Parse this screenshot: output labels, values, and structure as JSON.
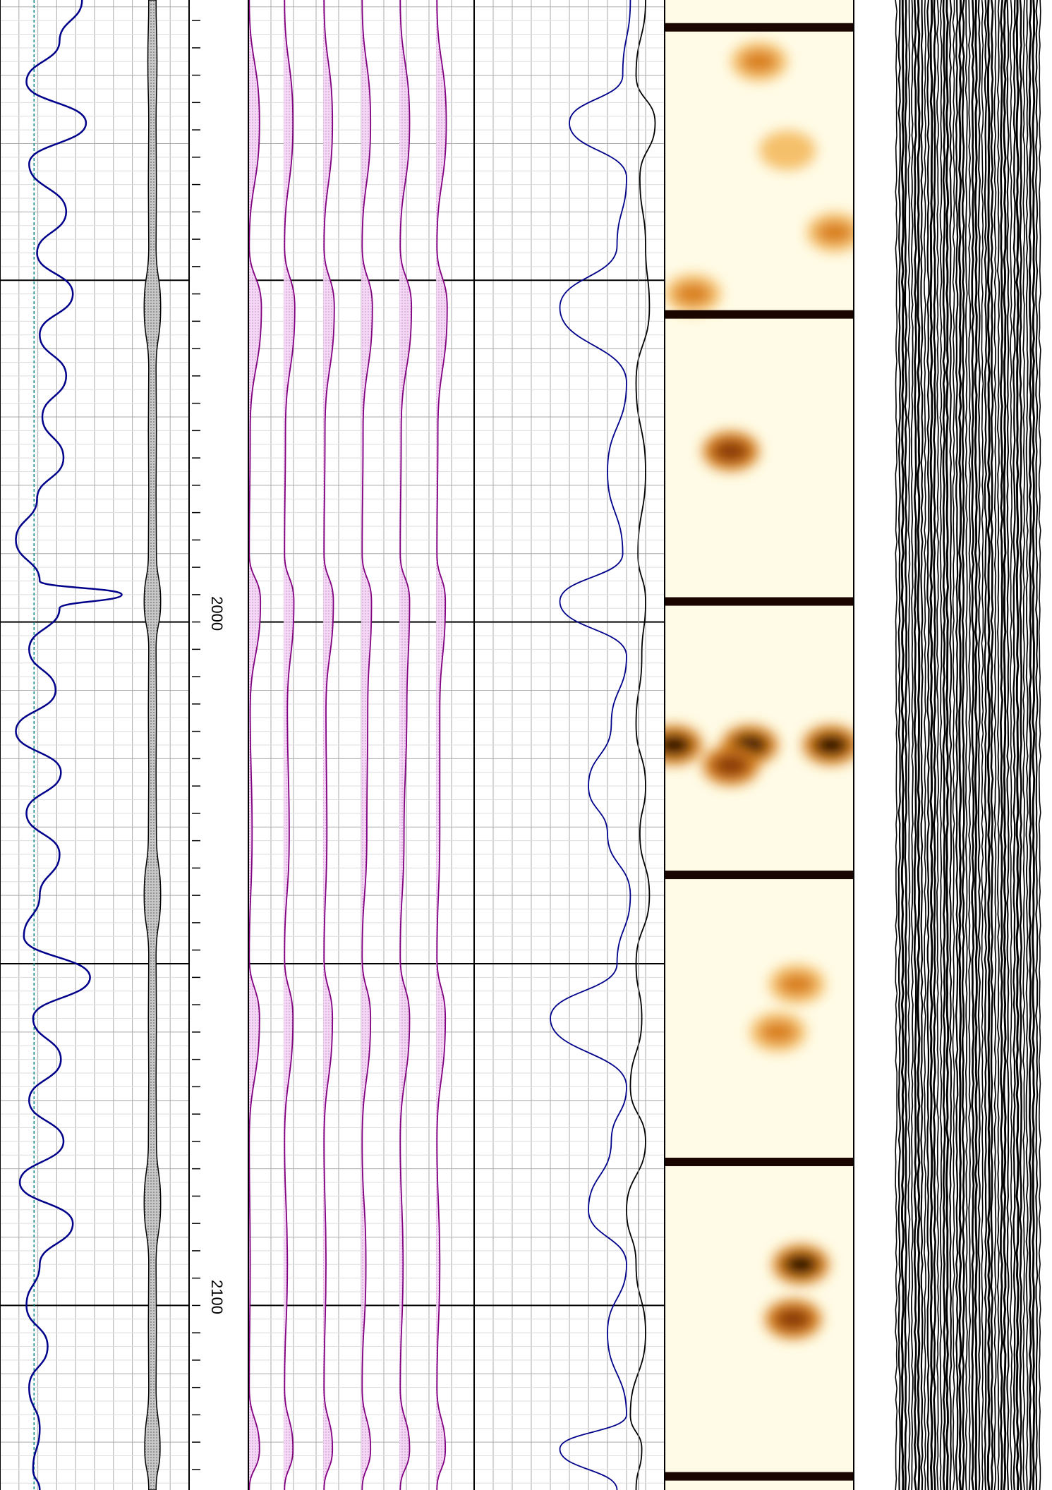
{
  "chart_data": {
    "type": "line",
    "depth_axis": {
      "range": [
        1909,
        2127
      ],
      "major_step": 50,
      "minor_step": 10,
      "tick_labels": [
        "2000",
        "2100"
      ]
    },
    "tracks": [
      {
        "name": "",
        "curve_color": "#00008b",
        "reference_line_color": "#008b8b",
        "reference_value": 0.5,
        "x_range": [
          0,
          1
        ],
        "series": [
          {
            "name": "",
            "depth": [
              1909,
              1915,
              1921,
              1927,
              1933,
              1940,
              1946,
              1952,
              1958,
              1964,
              1970,
              1976,
              1982,
              1988,
              1994,
              1996,
              1998,
              2004,
              2010,
              2016,
              2022,
              2028,
              2034,
              2040,
              2046,
              2052,
              2058,
              2064,
              2070,
              2076,
              2082,
              2088,
              2094,
              2100,
              2106,
              2112,
              2118,
              2124,
              2127
            ],
            "value": [
              0.62,
              0.45,
              0.2,
              0.65,
              0.22,
              0.5,
              0.28,
              0.55,
              0.3,
              0.5,
              0.32,
              0.48,
              0.28,
              0.12,
              0.3,
              0.92,
              0.45,
              0.22,
              0.42,
              0.12,
              0.46,
              0.2,
              0.45,
              0.3,
              0.18,
              0.68,
              0.25,
              0.46,
              0.22,
              0.48,
              0.15,
              0.55,
              0.3,
              0.2,
              0.36,
              0.22,
              0.3,
              0.25,
              0.3
            ]
          }
        ]
      },
      {
        "name": "",
        "curve_color": "#000000",
        "fill_color": "#bbbbbb",
        "x_range": [
          0,
          1
        ],
        "series": [
          {
            "name": "",
            "depth": [
              1909,
              1918,
              1927,
              1936,
              1945,
              1954,
              1963,
              1972,
              1981,
              1990,
              1997,
              2004,
              2013,
              2022,
              2031,
              2040,
              2049,
              2058,
              2067,
              2076,
              2085,
              2094,
              2103,
              2112,
              2121,
              2127
            ],
            "value": [
              0.2,
              0.25,
              0.2,
              0.22,
              0.2,
              0.45,
              0.2,
              0.22,
              0.2,
              0.22,
              0.45,
              0.2,
              0.22,
              0.2,
              0.22,
              0.45,
              0.2,
              0.22,
              0.2,
              0.22,
              0.45,
              0.2,
              0.22,
              0.2,
              0.42,
              0.2
            ]
          }
        ]
      },
      {
        "name": "",
        "curve_color": "#800080",
        "fill_color": "#f0c8f0",
        "x_range": [
          0,
          1
        ],
        "series": [
          {
            "name": "",
            "depth": [
              1909,
              1927,
              1945,
              1954,
              1972,
              1990,
              1997,
              2013,
              2031,
              2049,
              2058,
              2076,
              2094,
              2112,
              2121,
              2127
            ],
            "value": [
              0.05,
              0.6,
              0.05,
              0.7,
              0.1,
              0.05,
              0.65,
              0.1,
              0.2,
              0.05,
              0.6,
              0.05,
              0.1,
              0.05,
              0.6,
              0.05
            ]
          },
          {
            "name": "",
            "depth": [
              1909,
              1927,
              1945,
              1954,
              1972,
              1990,
              1997,
              2013,
              2031,
              2049,
              2058,
              2076,
              2094,
              2112,
              2121,
              2127
            ],
            "value": [
              0.05,
              0.5,
              0.05,
              0.6,
              0.1,
              0.05,
              0.55,
              0.2,
              0.3,
              0.05,
              0.5,
              0.05,
              0.2,
              0.05,
              0.5,
              0.05
            ]
          },
          {
            "name": "",
            "depth": [
              1909,
              1927,
              1945,
              1954,
              1972,
              1990,
              1997,
              2013,
              2031,
              2049,
              2058,
              2076,
              2094,
              2112,
              2121,
              2127
            ],
            "value": [
              0.05,
              0.5,
              0.05,
              0.6,
              0.1,
              0.05,
              0.55,
              0.15,
              0.2,
              0.05,
              0.5,
              0.05,
              0.15,
              0.05,
              0.5,
              0.05
            ]
          },
          {
            "name": "",
            "depth": [
              1909,
              1927,
              1945,
              1954,
              1972,
              1990,
              1997,
              2013,
              2031,
              2049,
              2058,
              2076,
              2094,
              2112,
              2121,
              2127
            ],
            "value": [
              0.05,
              0.5,
              0.05,
              0.6,
              0.1,
              0.05,
              0.55,
              0.35,
              0.3,
              0.05,
              0.5,
              0.05,
              0.25,
              0.05,
              0.5,
              0.05
            ]
          },
          {
            "name": "",
            "depth": [
              1909,
              1927,
              1945,
              1954,
              1972,
              1990,
              1997,
              2013,
              2031,
              2049,
              2058,
              2076,
              2094,
              2112,
              2121,
              2127
            ],
            "value": [
              0.05,
              0.55,
              0.05,
              0.65,
              0.1,
              0.05,
              0.55,
              0.4,
              0.25,
              0.05,
              0.55,
              0.05,
              0.2,
              0.05,
              0.55,
              0.05
            ]
          },
          {
            "name": "",
            "depth": [
              1909,
              1927,
              1945,
              1954,
              1972,
              1990,
              1997,
              2013,
              2031,
              2049,
              2058,
              2076,
              2094,
              2112,
              2121,
              2127
            ],
            "value": [
              0.05,
              0.55,
              0.05,
              0.6,
              0.1,
              0.05,
              0.5,
              0.2,
              0.2,
              0.05,
              0.5,
              0.05,
              0.2,
              0.05,
              0.5,
              0.05
            ]
          }
        ]
      },
      {
        "name": "",
        "x_range": [
          0,
          1
        ],
        "series": [
          {
            "name": "",
            "color": "#00008b",
            "depth": [
              1909,
              1920,
              1927,
              1935,
              1945,
              1954,
              1965,
              1978,
              1990,
              1997,
              2005,
              2015,
              2024,
              2031,
              2040,
              2050,
              2058,
              2068,
              2076,
              2086,
              2094,
              2104,
              2116,
              2121,
              2127
            ],
            "value": [
              0.82,
              0.78,
              0.5,
              0.8,
              0.75,
              0.45,
              0.8,
              0.7,
              0.78,
              0.45,
              0.8,
              0.72,
              0.6,
              0.7,
              0.82,
              0.75,
              0.4,
              0.8,
              0.72,
              0.6,
              0.8,
              0.7,
              0.8,
              0.45,
              0.75
            ]
          },
          {
            "name": "",
            "color": "#000000",
            "depth": [
              1909,
              1920,
              1927,
              1935,
              1945,
              1954,
              1965,
              1978,
              1990,
              1997,
              2005,
              2015,
              2024,
              2031,
              2040,
              2050,
              2058,
              2068,
              2076,
              2086,
              2094,
              2104,
              2116,
              2121,
              2127
            ],
            "value": [
              0.9,
              0.85,
              0.95,
              0.87,
              0.9,
              0.92,
              0.85,
              0.9,
              0.86,
              0.9,
              0.88,
              0.85,
              0.9,
              0.87,
              0.92,
              0.85,
              0.88,
              0.82,
              0.9,
              0.8,
              0.85,
              0.9,
              0.82,
              0.88,
              0.85
            ]
          }
        ]
      },
      {
        "name": "",
        "type": "heatmap",
        "palette": [
          "#fffbe6",
          "#f5c06a",
          "#d9801e",
          "#8a3a0a",
          "#1a0500"
        ],
        "bands": [
          {
            "depth": 1913,
            "thickness": 1.5,
            "intensity": 1.0
          },
          {
            "depth": 1955,
            "thickness": 1.5,
            "intensity": 1.0
          },
          {
            "depth": 1997,
            "thickness": 1.5,
            "intensity": 1.0
          },
          {
            "depth": 2037,
            "thickness": 1.5,
            "intensity": 1.0
          },
          {
            "depth": 2079,
            "thickness": 1.5,
            "intensity": 1.0
          },
          {
            "depth": 2125,
            "thickness": 1.5,
            "intensity": 1.0
          }
        ],
        "blobs": [
          {
            "depth": 1918,
            "pos": 0.5,
            "intensity": 0.45
          },
          {
            "depth": 1931,
            "pos": 0.65,
            "intensity": 0.35
          },
          {
            "depth": 1943,
            "pos": 0.9,
            "intensity": 0.4
          },
          {
            "depth": 1952,
            "pos": 0.15,
            "intensity": 0.5
          },
          {
            "depth": 1975,
            "pos": 0.35,
            "intensity": 0.7
          },
          {
            "depth": 2018,
            "pos": 0.05,
            "intensity": 0.95
          },
          {
            "depth": 2018,
            "pos": 0.45,
            "intensity": 0.95
          },
          {
            "depth": 2018,
            "pos": 0.88,
            "intensity": 0.95
          },
          {
            "depth": 2021,
            "pos": 0.35,
            "intensity": 0.8
          },
          {
            "depth": 2053,
            "pos": 0.7,
            "intensity": 0.6
          },
          {
            "depth": 2060,
            "pos": 0.6,
            "intensity": 0.55
          },
          {
            "depth": 2094,
            "pos": 0.72,
            "intensity": 0.95
          },
          {
            "depth": 2102,
            "pos": 0.68,
            "intensity": 0.75
          }
        ]
      },
      {
        "name": "",
        "type": "waveform",
        "color": "#000000",
        "trace_count": 46,
        "x_range": [
          0,
          1
        ]
      }
    ]
  }
}
